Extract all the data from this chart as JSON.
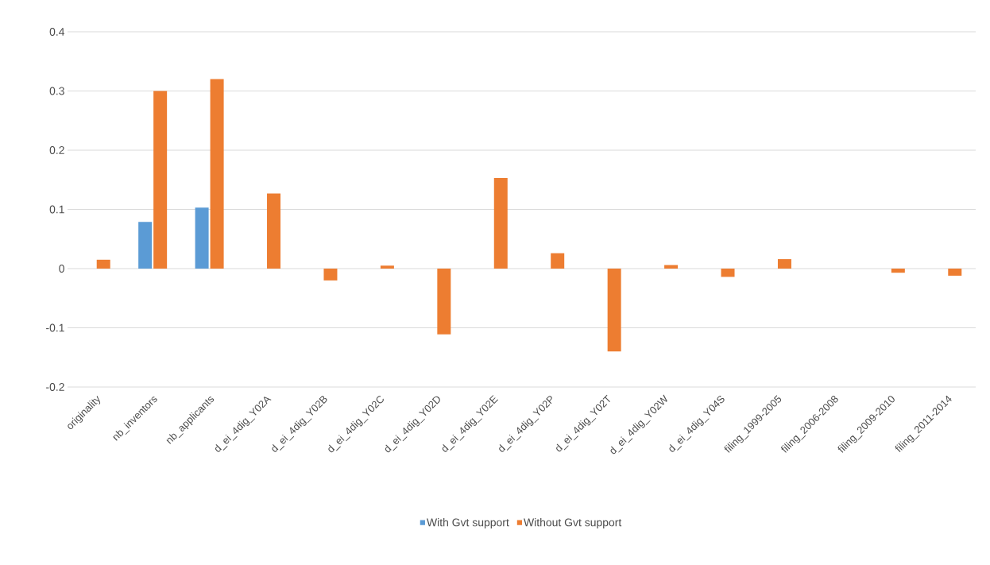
{
  "chart_data": {
    "type": "bar",
    "categories": [
      "originality",
      "nb_inventors",
      "nb_applicants",
      "d_ei_4dig_Y02A",
      "d_ei_4dig_Y02B",
      "d_ei_4dig_Y02C",
      "d_ei_4dig_Y02D",
      "d_ei_4dig_Y02E",
      "d_ei_4dig_Y02P",
      "d_ei_4dig_Y02T",
      "d_ei_4dig_Y02W",
      "d_ei_4dig_Y04S",
      "filing_1999-2005",
      "filing_2006-2008",
      "filing_2009-2010",
      "filing_2011-2014"
    ],
    "series": [
      {
        "name": "With Gvt support",
        "color": "#5b9bd5",
        "values": [
          null,
          0.079,
          0.103,
          null,
          null,
          null,
          null,
          null,
          null,
          null,
          null,
          null,
          null,
          null,
          null,
          null
        ]
      },
      {
        "name": "Without Gvt support",
        "color": "#ed7d31",
        "values": [
          0.015,
          0.3,
          0.32,
          0.127,
          -0.02,
          0.005,
          -0.111,
          0.153,
          0.026,
          -0.14,
          0.006,
          -0.014,
          0.016,
          null,
          -0.007,
          -0.012
        ]
      }
    ],
    "ylim": [
      -0.2,
      0.4
    ],
    "yticks": [
      -0.2,
      -0.1,
      0,
      0.1,
      0.2,
      0.3,
      0.4
    ],
    "grid": "y",
    "legend": "bottom"
  }
}
